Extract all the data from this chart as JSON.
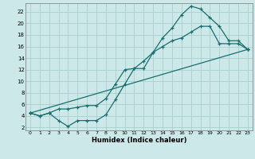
{
  "title": "",
  "xlabel": "Humidex (Indice chaleur)",
  "bg_color": "#cce8e8",
  "grid_color": "#aacfcf",
  "line_color": "#1a6e6e",
  "xlim": [
    -0.5,
    23.5
  ],
  "ylim": [
    1.5,
    23.5
  ],
  "yticks": [
    2,
    4,
    6,
    8,
    10,
    12,
    14,
    16,
    18,
    20,
    22
  ],
  "xticks": [
    0,
    1,
    2,
    3,
    4,
    5,
    6,
    7,
    8,
    9,
    10,
    11,
    12,
    13,
    14,
    15,
    16,
    17,
    18,
    19,
    20,
    21,
    22,
    23
  ],
  "line1_x": [
    0,
    1,
    2,
    3,
    4,
    5,
    6,
    7,
    8,
    9,
    10,
    11,
    12,
    13,
    14,
    15,
    16,
    17,
    18,
    19,
    20,
    21,
    22,
    23
  ],
  "line1_y": [
    4.5,
    4.0,
    4.5,
    3.2,
    2.2,
    3.2,
    3.2,
    3.2,
    4.2,
    6.8,
    9.5,
    12.2,
    12.2,
    15.0,
    17.5,
    19.2,
    21.5,
    23.0,
    22.5,
    21.0,
    19.5,
    17.0,
    17.0,
    15.5
  ],
  "line2_x": [
    0,
    1,
    2,
    3,
    4,
    5,
    6,
    7,
    8,
    9,
    10,
    11,
    12,
    13,
    14,
    15,
    16,
    17,
    18,
    19,
    20,
    21,
    22,
    23
  ],
  "line2_y": [
    4.5,
    4.0,
    4.5,
    5.2,
    5.2,
    5.5,
    5.8,
    5.8,
    7.0,
    9.5,
    12.0,
    12.2,
    13.5,
    15.0,
    16.0,
    17.0,
    17.5,
    18.5,
    19.5,
    19.5,
    16.5,
    16.5,
    16.5,
    15.5
  ],
  "line3_x": [
    0,
    23
  ],
  "line3_y": [
    4.5,
    15.5
  ]
}
